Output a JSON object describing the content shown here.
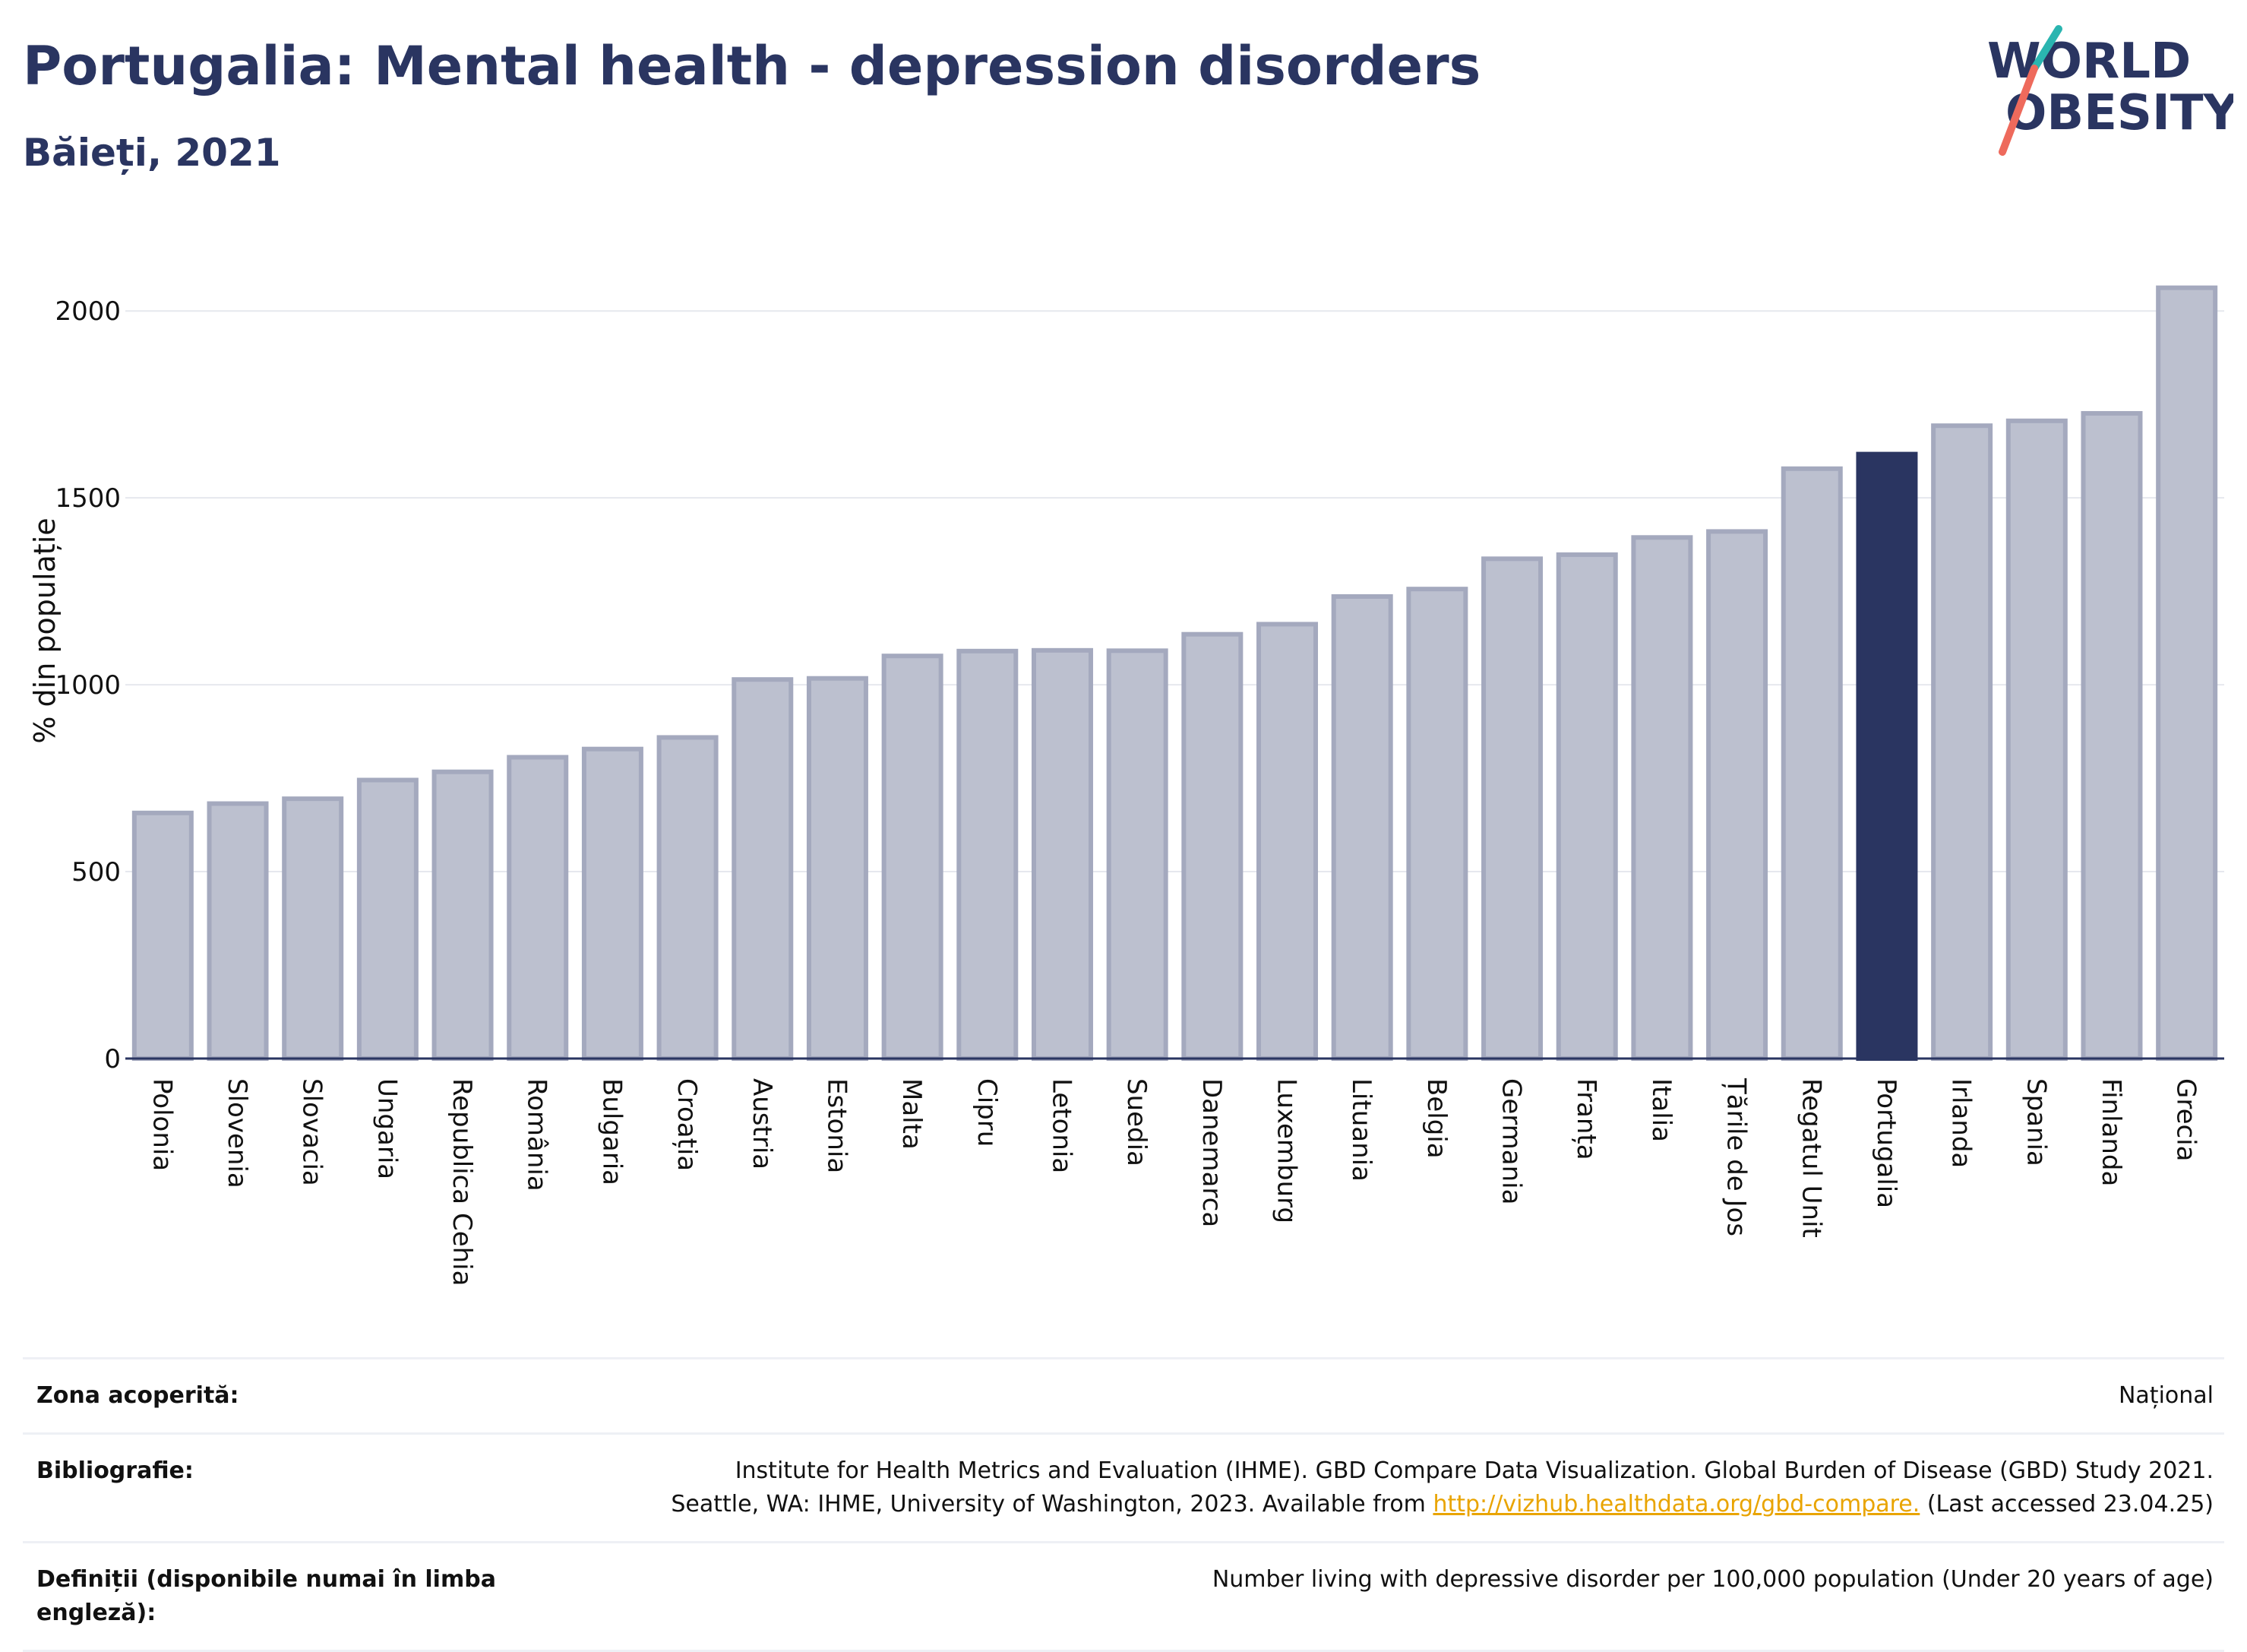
{
  "header": {
    "title": "Portugalia: Mental health - depression disorders",
    "subtitle": "Băieți, 2021"
  },
  "logo": {
    "line1": "WORLD",
    "line2": "OBESITY",
    "brand_colors": [
      "#2a3561",
      "#2ab5b0",
      "#ee6a5c"
    ]
  },
  "colors": {
    "bar_default": "#bcc0cf",
    "bar_default_outline": "#a4a9be",
    "bar_highlight": "#2a3561",
    "grid": "#e6e8ee",
    "axis": "#2a3561"
  },
  "chart_data": {
    "type": "bar",
    "title": "Portugalia: Mental health - depression disorders",
    "subtitle": "Băieți, 2021",
    "ylabel": "% din populație",
    "xlabel": "",
    "ylim": [
      0,
      2100
    ],
    "yticks": [
      0,
      500,
      1000,
      1500,
      2000
    ],
    "grid": true,
    "highlight": "Portugalia",
    "categories": [
      "Polonia",
      "Slovenia",
      "Slovacia",
      "Ungaria",
      "Republica Cehia",
      "România",
      "Bulgaria",
      "Croația",
      "Austria",
      "Estonia",
      "Malta",
      "Cipru",
      "Letonia",
      "Suedia",
      "Danemarca",
      "Luxemburg",
      "Lituania",
      "Belgia",
      "Germania",
      "Franța",
      "Italia",
      "Țările de Jos",
      "Regatul Unit",
      "Portugalia",
      "Irlanda",
      "Spania",
      "Finlanda",
      "Grecia"
    ],
    "values": [
      657,
      682,
      695,
      745,
      767,
      806,
      828,
      859,
      1014,
      1017,
      1077,
      1090,
      1092,
      1091,
      1135,
      1162,
      1236,
      1256,
      1337,
      1348,
      1394,
      1410,
      1578,
      1617,
      1693,
      1706,
      1726,
      2062
    ]
  },
  "info": {
    "coverage": {
      "label": "Zona acoperită:",
      "value": "Național"
    },
    "bibliography": {
      "label": "Bibliografie:",
      "line1": "Institute for Health Metrics and Evaluation (IHME). GBD Compare Data Visualization. Global Burden of Disease (GBD) Study 2021.",
      "line2_prefix": "Seattle, WA: IHME, University of Washington, 2023. Available from ",
      "link": "http://vizhub.healthdata.org/gbd-compare.",
      "line2_suffix": " (Last accessed 23.04.25)"
    },
    "definitions": {
      "label": "Definiții (disponibile numai în limba engleză):",
      "value": "Number living with depressive disorder per 100,000 population (Under 20 years of age)"
    }
  }
}
